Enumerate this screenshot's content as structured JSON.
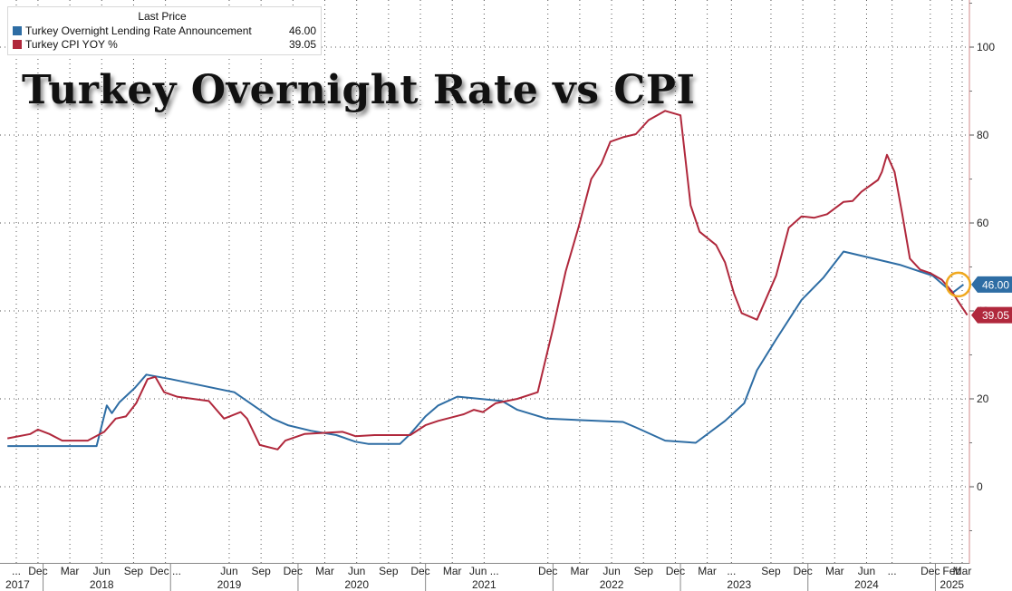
{
  "chart_data": {
    "type": "line",
    "title": "Turkey Overnight Rate vs CPI",
    "legend": {
      "header": "Last Price",
      "placement": "top-left",
      "entries": [
        {
          "name": "Turkey Overnight Lending Rate Announcement",
          "value": "46.00"
        },
        {
          "name": "Turkey CPI YOY %",
          "value": "39.05"
        }
      ]
    },
    "ylim": [
      -15,
      110
    ],
    "yticks": [
      0,
      20,
      40,
      60,
      80,
      100
    ],
    "y_tick_labels": [
      "0",
      "20",
      "40",
      "60",
      "80",
      "100"
    ],
    "xlim": [
      2017.72,
      2025.3
    ],
    "month_ticks": [
      {
        "label": "...",
        "x": 2017.79
      },
      {
        "label": "Dec",
        "x": 2017.96
      },
      {
        "label": "Mar",
        "x": 2018.21
      },
      {
        "label": "Jun",
        "x": 2018.46
      },
      {
        "label": "Sep",
        "x": 2018.71
      },
      {
        "label": "Dec ...",
        "x": 2018.96
      },
      {
        "label": "Jun",
        "x": 2019.46
      },
      {
        "label": "Sep",
        "x": 2019.71
      },
      {
        "label": "Dec",
        "x": 2019.96
      },
      {
        "label": "Mar",
        "x": 2020.21
      },
      {
        "label": "Jun",
        "x": 2020.46
      },
      {
        "label": "Sep",
        "x": 2020.71
      },
      {
        "label": "Dec",
        "x": 2020.96
      },
      {
        "label": "Mar",
        "x": 2021.21
      },
      {
        "label": "Jun ...",
        "x": 2021.46
      },
      {
        "label": "Dec",
        "x": 2021.96
      },
      {
        "label": "Mar",
        "x": 2022.21
      },
      {
        "label": "Jun",
        "x": 2022.46
      },
      {
        "label": "Sep",
        "x": 2022.71
      },
      {
        "label": "Dec",
        "x": 2022.96
      },
      {
        "label": "Mar",
        "x": 2023.21
      },
      {
        "label": "...",
        "x": 2023.4
      },
      {
        "label": "Sep",
        "x": 2023.71
      },
      {
        "label": "Dec",
        "x": 2023.96
      },
      {
        "label": "Mar",
        "x": 2024.21
      },
      {
        "label": "Jun",
        "x": 2024.46
      },
      {
        "label": "...",
        "x": 2024.66
      },
      {
        "label": "Dec",
        "x": 2024.96
      },
      {
        "label": "Feb",
        "x": 2025.13
      },
      {
        "label": "Mar",
        "x": 2025.21
      }
    ],
    "year_ticks": [
      {
        "label": "2017",
        "x": 2017.8
      },
      {
        "label": "2018",
        "x": 2018.46
      },
      {
        "label": "2019",
        "x": 2019.46
      },
      {
        "label": "2020",
        "x": 2020.46
      },
      {
        "label": "2021",
        "x": 2021.46
      },
      {
        "label": "2022",
        "x": 2022.46
      },
      {
        "label": "2023",
        "x": 2023.46
      },
      {
        "label": "2024",
        "x": 2024.46
      },
      {
        "label": "2025",
        "x": 2025.13
      }
    ],
    "year_dividers": [
      2018.0,
      2019.0,
      2020.0,
      2021.0,
      2022.0,
      2023.0,
      2024.0,
      2025.0
    ],
    "grid": true,
    "series": [
      {
        "name": "Turkey Overnight Lending Rate Announcement",
        "color": "#2e6da4",
        "end_label": "46.00",
        "points": [
          [
            2017.72,
            9.25
          ],
          [
            2018.42,
            9.25
          ],
          [
            2018.5,
            18.5
          ],
          [
            2018.54,
            16.75
          ],
          [
            2018.6,
            19.25
          ],
          [
            2018.72,
            22.5
          ],
          [
            2018.81,
            25.5
          ],
          [
            2019.0,
            24.5
          ],
          [
            2019.5,
            21.5
          ],
          [
            2019.6,
            19.5
          ],
          [
            2019.8,
            15.5
          ],
          [
            2019.92,
            14.0
          ],
          [
            2020.1,
            12.75
          ],
          [
            2020.3,
            11.75
          ],
          [
            2020.45,
            10.25
          ],
          [
            2020.55,
            9.75
          ],
          [
            2020.8,
            9.75
          ],
          [
            2020.88,
            12.0
          ],
          [
            2021.0,
            16.0
          ],
          [
            2021.1,
            18.5
          ],
          [
            2021.25,
            20.5
          ],
          [
            2021.6,
            19.5
          ],
          [
            2021.72,
            17.5
          ],
          [
            2021.95,
            15.5
          ],
          [
            2022.55,
            14.75
          ],
          [
            2022.65,
            13.5
          ],
          [
            2022.88,
            10.5
          ],
          [
            2023.12,
            10.0
          ],
          [
            2023.35,
            15.0
          ],
          [
            2023.5,
            19.0
          ],
          [
            2023.6,
            26.5
          ],
          [
            2023.75,
            33.5
          ],
          [
            2023.95,
            42.5
          ],
          [
            2024.12,
            47.5
          ],
          [
            2024.28,
            53.5
          ],
          [
            2024.72,
            50.5
          ],
          [
            2024.98,
            48.0
          ],
          [
            2025.1,
            45.0
          ],
          [
            2025.13,
            44.0
          ],
          [
            2025.22,
            46.0
          ]
        ]
      },
      {
        "name": "Turkey CPI YOY %",
        "color": "#b0283c",
        "end_label": "39.05",
        "points": [
          [
            2017.72,
            11.0
          ],
          [
            2017.9,
            12.0
          ],
          [
            2017.96,
            13.0
          ],
          [
            2018.05,
            12.0
          ],
          [
            2018.15,
            10.5
          ],
          [
            2018.35,
            10.5
          ],
          [
            2018.48,
            12.5
          ],
          [
            2018.57,
            15.5
          ],
          [
            2018.65,
            16.0
          ],
          [
            2018.73,
            19.0
          ],
          [
            2018.82,
            24.5
          ],
          [
            2018.88,
            25.0
          ],
          [
            2018.95,
            21.5
          ],
          [
            2019.05,
            20.5
          ],
          [
            2019.3,
            19.5
          ],
          [
            2019.42,
            15.5
          ],
          [
            2019.55,
            17.0
          ],
          [
            2019.6,
            15.5
          ],
          [
            2019.7,
            9.5
          ],
          [
            2019.84,
            8.5
          ],
          [
            2019.9,
            10.5
          ],
          [
            2020.05,
            12.0
          ],
          [
            2020.35,
            12.5
          ],
          [
            2020.45,
            11.5
          ],
          [
            2020.6,
            11.75
          ],
          [
            2020.72,
            11.75
          ],
          [
            2020.88,
            11.75
          ],
          [
            2021.0,
            14.0
          ],
          [
            2021.1,
            15.0
          ],
          [
            2021.3,
            16.5
          ],
          [
            2021.38,
            17.5
          ],
          [
            2021.45,
            17.0
          ],
          [
            2021.55,
            19.0
          ],
          [
            2021.72,
            20.0
          ],
          [
            2021.88,
            21.5
          ],
          [
            2022.0,
            36.0
          ],
          [
            2022.1,
            49.0
          ],
          [
            2022.2,
            59.0
          ],
          [
            2022.3,
            70.0
          ],
          [
            2022.38,
            73.5
          ],
          [
            2022.45,
            78.5
          ],
          [
            2022.55,
            79.5
          ],
          [
            2022.65,
            80.2
          ],
          [
            2022.75,
            83.4
          ],
          [
            2022.88,
            85.5
          ],
          [
            2023.0,
            84.5
          ],
          [
            2023.08,
            64.0
          ],
          [
            2023.15,
            58.0
          ],
          [
            2023.28,
            55.0
          ],
          [
            2023.35,
            51.0
          ],
          [
            2023.42,
            44.0
          ],
          [
            2023.48,
            39.5
          ],
          [
            2023.6,
            38.0
          ],
          [
            2023.75,
            48.0
          ],
          [
            2023.85,
            58.9
          ],
          [
            2023.95,
            61.5
          ],
          [
            2024.05,
            61.2
          ],
          [
            2024.15,
            62.0
          ],
          [
            2024.28,
            64.8
          ],
          [
            2024.35,
            65.0
          ],
          [
            2024.42,
            67.1
          ],
          [
            2024.55,
            69.8
          ],
          [
            2024.58,
            71.6
          ],
          [
            2024.62,
            75.5
          ],
          [
            2024.68,
            71.6
          ],
          [
            2024.74,
            62.0
          ],
          [
            2024.8,
            51.9
          ],
          [
            2024.88,
            49.4
          ],
          [
            2024.96,
            48.6
          ],
          [
            2025.05,
            47.1
          ],
          [
            2025.13,
            44.4
          ],
          [
            2025.18,
            42.1
          ],
          [
            2025.25,
            39.05
          ]
        ]
      }
    ]
  }
}
